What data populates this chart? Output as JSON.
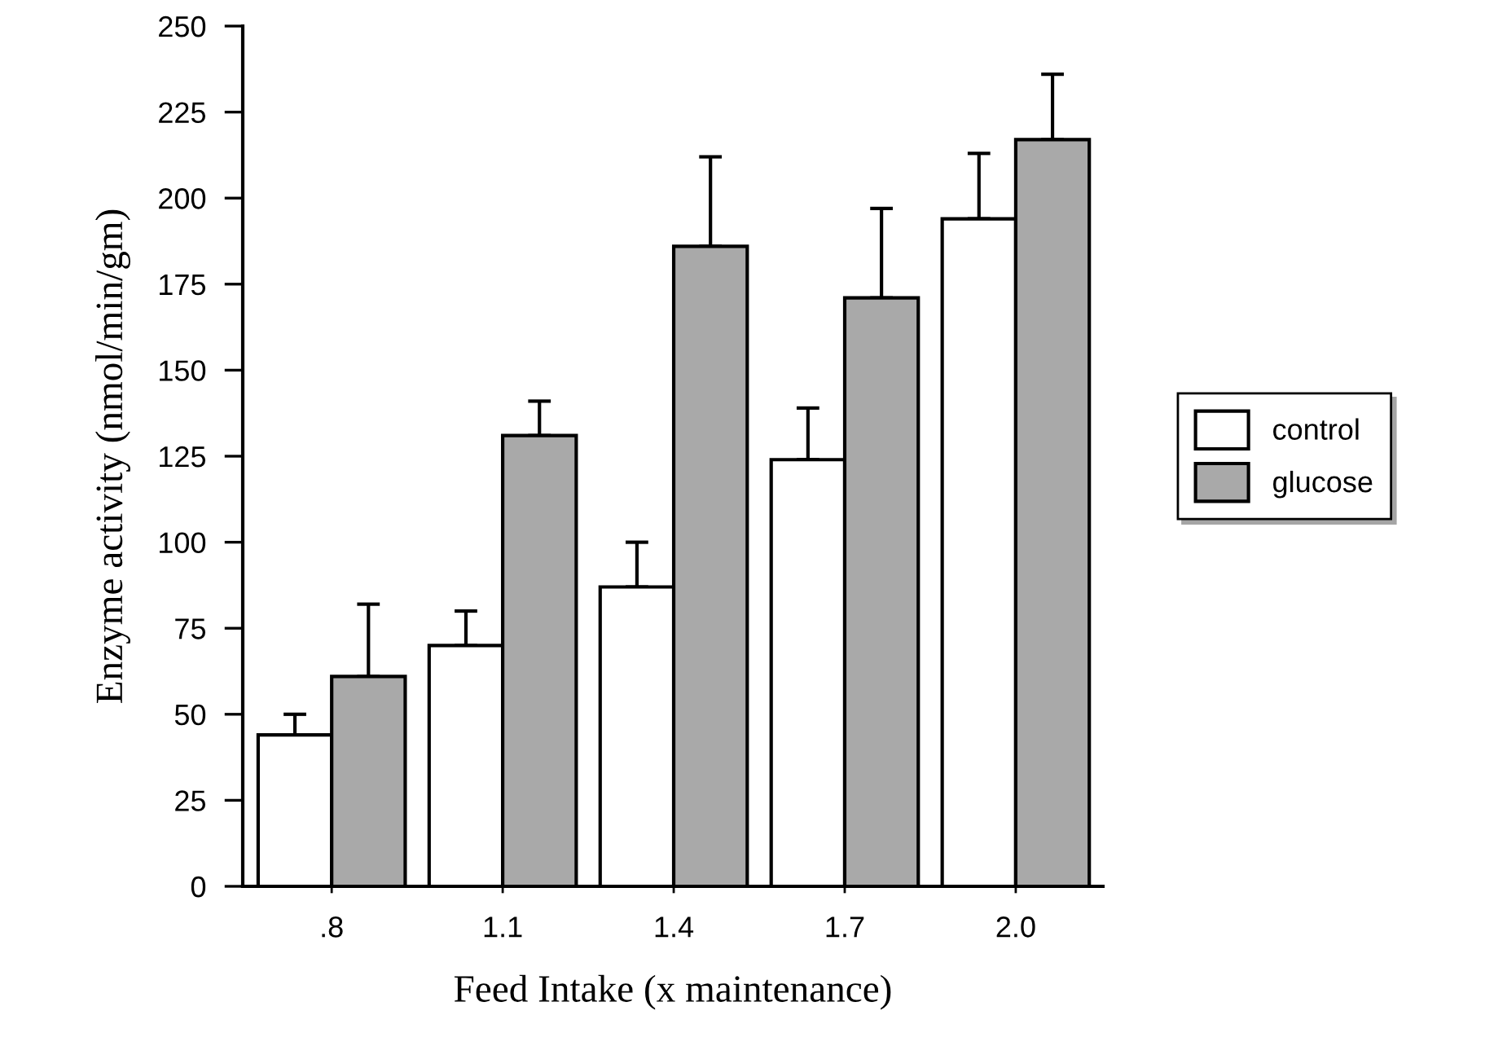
{
  "chart_data": {
    "type": "bar",
    "xlabel": "Feed Intake (x maintenance)",
    "ylabel": "Enzyme activity (nmol/min/gm)",
    "categories": [
      ".8",
      "1.1",
      "1.4",
      "1.7",
      "2.0"
    ],
    "series": [
      {
        "name": "control",
        "color": "#ffffff",
        "values": [
          44,
          70,
          87,
          124,
          194
        ],
        "errors": [
          [
            44,
            50
          ],
          [
            70,
            80
          ],
          [
            87,
            100
          ],
          [
            124,
            139
          ],
          [
            194,
            213
          ]
        ]
      },
      {
        "name": "glucose",
        "color": "#a9a9a9",
        "values": [
          61,
          131,
          186,
          171,
          217
        ],
        "errors": [
          [
            61,
            82
          ],
          [
            131,
            141
          ],
          [
            186,
            212
          ],
          [
            171,
            197
          ],
          [
            217,
            236
          ]
        ]
      }
    ],
    "ylim": [
      0,
      250
    ],
    "yticks": [
      0,
      25,
      50,
      75,
      100,
      125,
      150,
      175,
      200,
      225,
      250
    ],
    "grid": false,
    "legend": "right"
  }
}
